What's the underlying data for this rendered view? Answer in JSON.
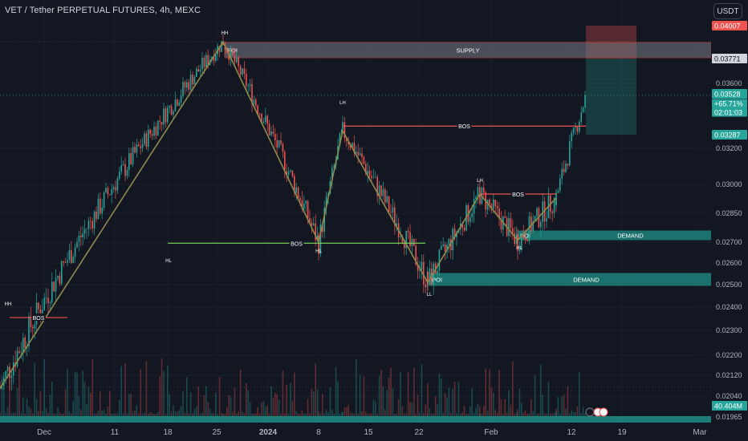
{
  "header": {
    "title": "VET / Tether PERPETUAL FUTURES, 4h, MEXC",
    "currency": "USDT"
  },
  "colors": {
    "background": "#131722",
    "up": "#26a69a",
    "down": "#ef5350",
    "structure_line": "#8f8a4e",
    "bos_red": "#ef5350",
    "bos_green": "#7ed957",
    "supply": "#787b86",
    "demand": "#1e8f86"
  },
  "chart_data": {
    "type": "candlestick",
    "price_axis": {
      "min": 0.01965,
      "max": 0.04007,
      "ticks": [
        "0.03600",
        "0.03200",
        "0.03000",
        "0.02850",
        "0.02700",
        "0.02600",
        "0.02500",
        "0.02400",
        "0.02300",
        "0.02200",
        "0.02120",
        "0.02040",
        "0.01965"
      ]
    },
    "time_axis": {
      "ticks": [
        "Dec",
        "11",
        "18",
        "25",
        "2024",
        "8",
        "15",
        "22",
        "Feb",
        "12",
        "19",
        "Mar"
      ]
    },
    "price_badges": [
      {
        "label": "0.04007",
        "kind": "stop"
      },
      {
        "label": "0.03771",
        "kind": "supply"
      },
      {
        "label": "0.03528",
        "kind": "last"
      },
      {
        "label": "+65.71%",
        "kind": "change"
      },
      {
        "label": "02:01:03",
        "kind": "countdown"
      },
      {
        "label": "0.03287",
        "kind": "entry"
      },
      {
        "label": "40.404M",
        "kind": "volume"
      }
    ],
    "structure_labels": [
      "HH",
      "HH",
      "HL",
      "HL",
      "LH",
      "LH",
      "HL",
      "LL"
    ],
    "zones": [
      {
        "label": "SUPPLY",
        "poi": "POI",
        "kind": "supply"
      },
      {
        "label": "DEMAND",
        "poi": "POI",
        "kind": "demand"
      },
      {
        "label": "DEMAND",
        "poi": "POI",
        "kind": "demand"
      }
    ],
    "bos_lines": [
      {
        "label": "BOS",
        "kind": "bearish"
      },
      {
        "label": "BOS",
        "kind": "bullish"
      },
      {
        "label": "BOS",
        "kind": "bearish"
      },
      {
        "label": "BOS",
        "kind": "bearish"
      }
    ],
    "trend_path": [
      {
        "t": "Dec 1",
        "price": 0.0207
      },
      {
        "t": "Dec 25",
        "price": 0.0389
      },
      {
        "t": "Jan 6",
        "price": 0.027
      },
      {
        "t": "Jan 10",
        "price": 0.0331
      },
      {
        "t": "Jan 22",
        "price": 0.0251
      },
      {
        "t": "Jan 30",
        "price": 0.0295
      },
      {
        "t": "Feb 3",
        "price": 0.0271
      },
      {
        "t": "Feb 7",
        "price": 0.0293
      }
    ],
    "position": {
      "type": "long",
      "entry": 0.03287,
      "target": 0.03771,
      "stop": 0.04007
    }
  }
}
